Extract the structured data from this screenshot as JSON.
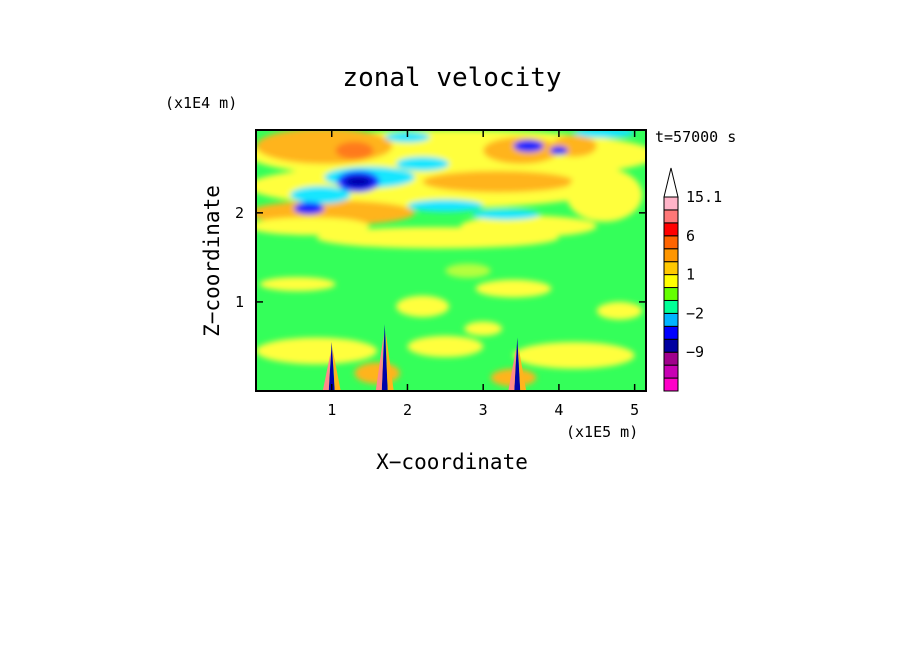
{
  "chart_data": {
    "type": "heatmap",
    "title": "zonal velocity",
    "xlabel": "X−coordinate",
    "ylabel": "Z−coordinate",
    "x_unit": "(x1E5 m)",
    "y_unit": "(x1E4 m)",
    "time_label": "t=57000 s",
    "xlim": [
      0,
      5.15
    ],
    "ylim": [
      0,
      2.93
    ],
    "x_ticks": [
      1,
      2,
      3,
      4,
      5
    ],
    "y_ticks": [
      1,
      2
    ],
    "colorbar": {
      "levels": [
        -15,
        -12,
        -9,
        -6,
        -3,
        -2,
        -1,
        0,
        1,
        2,
        3,
        6,
        9,
        12,
        15.1
      ],
      "colors": [
        "#ff00c8",
        "#c800b4",
        "#a0008c",
        "#0000a0",
        "#0000ff",
        "#00b4ff",
        "#00ff96",
        "#64ff00",
        "#ffff00",
        "#ffc800",
        "#ff9600",
        "#ff6400",
        "#ff0000",
        "#ff7878",
        "#ffb4c8",
        "#ffffff"
      ],
      "labels": [
        "15.1",
        "6",
        "1",
        "−2",
        "−9"
      ],
      "label_values": [
        15.1,
        6,
        1,
        -2,
        -9
      ]
    },
    "grid": false
  }
}
